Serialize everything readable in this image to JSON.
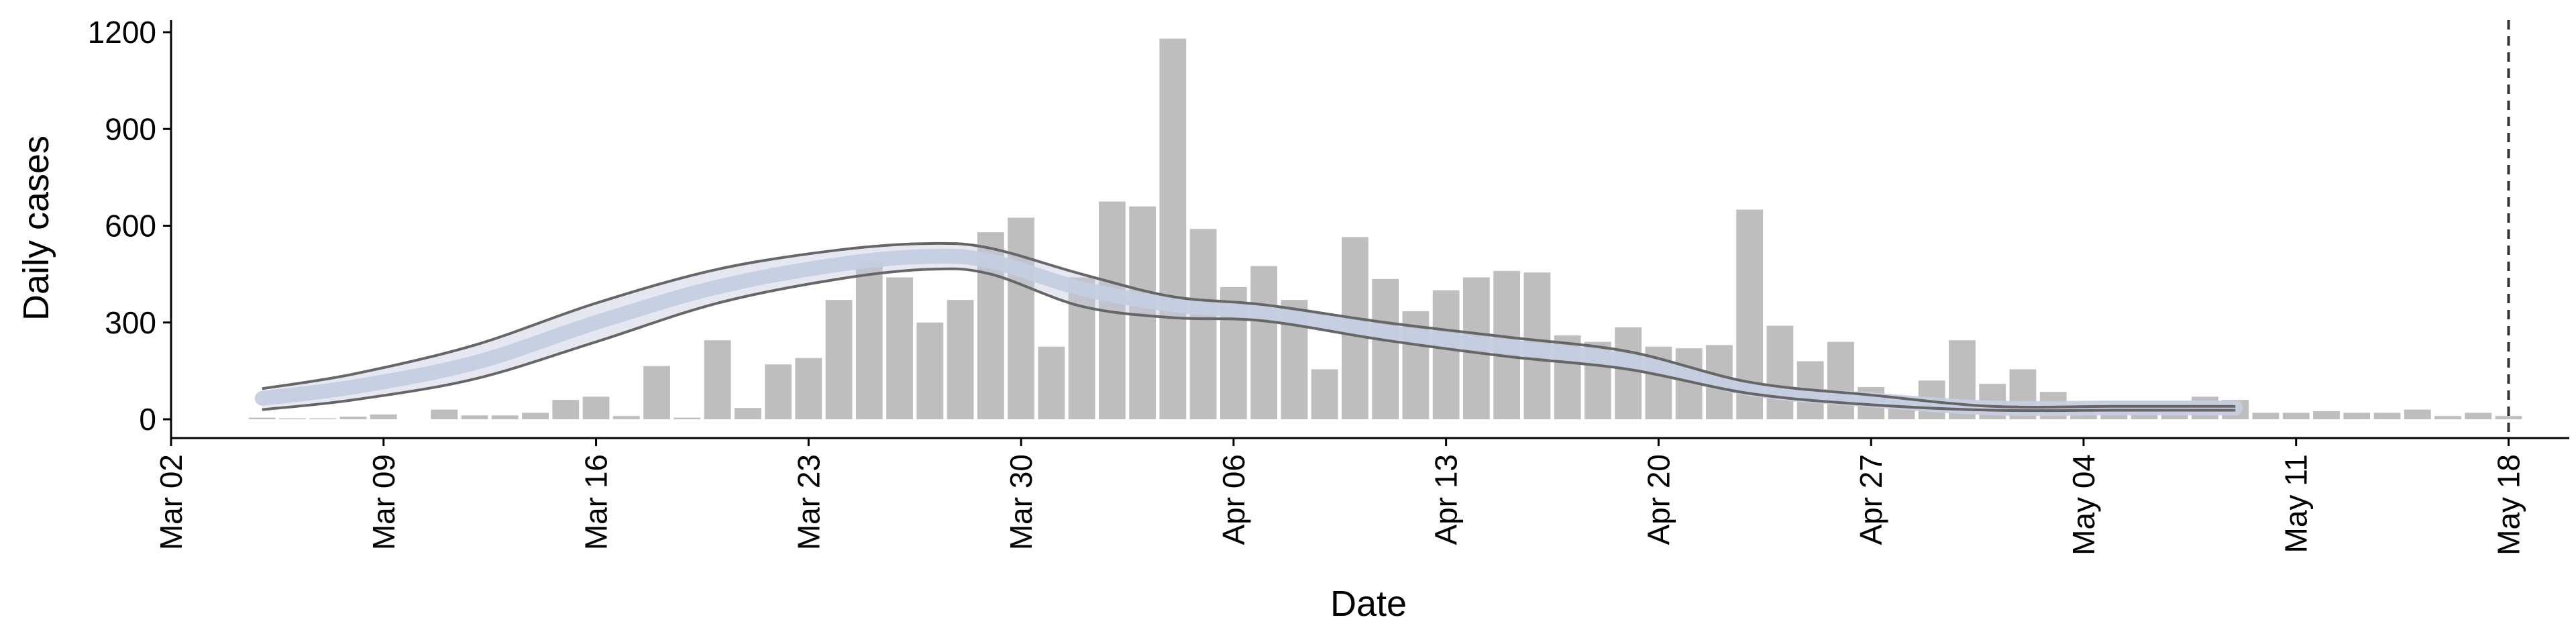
{
  "chart_data": {
    "type": "bar",
    "xlabel": "Date",
    "ylabel": "Daily cases",
    "ylim": [
      0,
      1200
    ],
    "yticks": [
      0,
      300,
      600,
      900,
      1200
    ],
    "xlim": [
      "2020-03-02",
      "2020-05-20"
    ],
    "xticks": [
      {
        "date": "2020-03-02",
        "label": "Mar 02"
      },
      {
        "date": "2020-03-09",
        "label": "Mar 09"
      },
      {
        "date": "2020-03-16",
        "label": "Mar 16"
      },
      {
        "date": "2020-03-23",
        "label": "Mar 23"
      },
      {
        "date": "2020-03-30",
        "label": "Mar 30"
      },
      {
        "date": "2020-04-06",
        "label": "Apr 06"
      },
      {
        "date": "2020-04-13",
        "label": "Apr 13"
      },
      {
        "date": "2020-04-20",
        "label": "Apr 20"
      },
      {
        "date": "2020-04-27",
        "label": "Apr 27"
      },
      {
        "date": "2020-05-04",
        "label": "May 04"
      },
      {
        "date": "2020-05-11",
        "label": "May 11"
      },
      {
        "date": "2020-05-18",
        "label": "May 18"
      }
    ],
    "vline_date": "2020-05-18",
    "grid": false,
    "bar_color": "#bebebe",
    "band_color": "#c5cde0",
    "line_color": "#666666",
    "vline_color": "#333333",
    "daily_cases": {
      "first_date": "2020-03-05",
      "values": [
        5,
        3,
        3,
        8,
        15,
        0,
        30,
        12,
        12,
        20,
        60,
        70,
        10,
        165,
        5,
        245,
        35,
        170,
        190,
        370,
        490,
        440,
        300,
        370,
        580,
        625,
        225,
        440,
        675,
        660,
        1180,
        590,
        410,
        475,
        370,
        155,
        565,
        435,
        335,
        400,
        440,
        460,
        455,
        260,
        240,
        285,
        225,
        220,
        230,
        650,
        290,
        180,
        240,
        100,
        70,
        120,
        245,
        110,
        155,
        85,
        30,
        35,
        45,
        25,
        70,
        60,
        20,
        20,
        25,
        20,
        20,
        30,
        10,
        20,
        10
      ]
    },
    "model_fit": {
      "dates": [
        "2020-03-05",
        "2020-03-08",
        "2020-03-12",
        "2020-03-16",
        "2020-03-20",
        "2020-03-24",
        "2020-03-27",
        "2020-03-29",
        "2020-04-01",
        "2020-04-04",
        "2020-04-07",
        "2020-04-11",
        "2020-04-15",
        "2020-04-19",
        "2020-04-23",
        "2020-04-27",
        "2020-05-01",
        "2020-05-05",
        "2020-05-09"
      ],
      "upper": [
        95,
        140,
        230,
        360,
        465,
        525,
        545,
        530,
        450,
        380,
        355,
        300,
        255,
        210,
        115,
        75,
        40,
        40,
        40
      ],
      "median": [
        65,
        100,
        175,
        300,
        410,
        480,
        505,
        490,
        405,
        355,
        330,
        270,
        225,
        180,
        95,
        60,
        35,
        35,
        35
      ],
      "lower": [
        30,
        60,
        125,
        240,
        360,
        435,
        465,
        450,
        350,
        315,
        305,
        245,
        195,
        155,
        80,
        45,
        28,
        28,
        28
      ]
    }
  }
}
